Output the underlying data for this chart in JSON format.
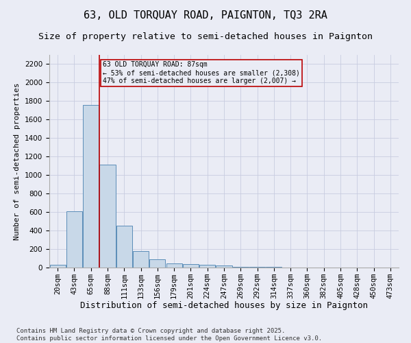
{
  "title1": "63, OLD TORQUAY ROAD, PAIGNTON, TQ3 2RA",
  "title2": "Size of property relative to semi-detached houses in Paignton",
  "xlabel": "Distribution of semi-detached houses by size in Paignton",
  "ylabel": "Number of semi-detached properties",
  "footnote": "Contains HM Land Registry data © Crown copyright and database right 2025.\nContains public sector information licensed under the Open Government Licence v3.0.",
  "bin_labels": [
    "20sqm",
    "43sqm",
    "65sqm",
    "88sqm",
    "111sqm",
    "133sqm",
    "156sqm",
    "179sqm",
    "201sqm",
    "224sqm",
    "247sqm",
    "269sqm",
    "292sqm",
    "314sqm",
    "337sqm",
    "360sqm",
    "382sqm",
    "405sqm",
    "428sqm",
    "450sqm",
    "473sqm"
  ],
  "bar_values": [
    30,
    610,
    1760,
    1110,
    450,
    180,
    90,
    45,
    40,
    30,
    20,
    5,
    5,
    5,
    2,
    2,
    2,
    2,
    2,
    1,
    1
  ],
  "bar_color": "#c8d8e8",
  "bar_edge_color": "#5b8db8",
  "grid_color": "#c8cce0",
  "background_color": "#eaecf5",
  "vline_x_index": 3,
  "vline_color": "#bb0000",
  "annotation_text": "63 OLD TORQUAY ROAD: 87sqm\n← 53% of semi-detached houses are smaller (2,308)\n47% of semi-detached houses are larger (2,007) →",
  "annotation_box_color": "#bb0000",
  "ylim": [
    0,
    2300
  ],
  "yticks": [
    0,
    200,
    400,
    600,
    800,
    1000,
    1200,
    1400,
    1600,
    1800,
    2000,
    2200
  ],
  "title1_fontsize": 11,
  "title2_fontsize": 9.5,
  "xlabel_fontsize": 9,
  "ylabel_fontsize": 8,
  "tick_fontsize": 7.5,
  "annot_fontsize": 7,
  "footnote_fontsize": 6.5
}
